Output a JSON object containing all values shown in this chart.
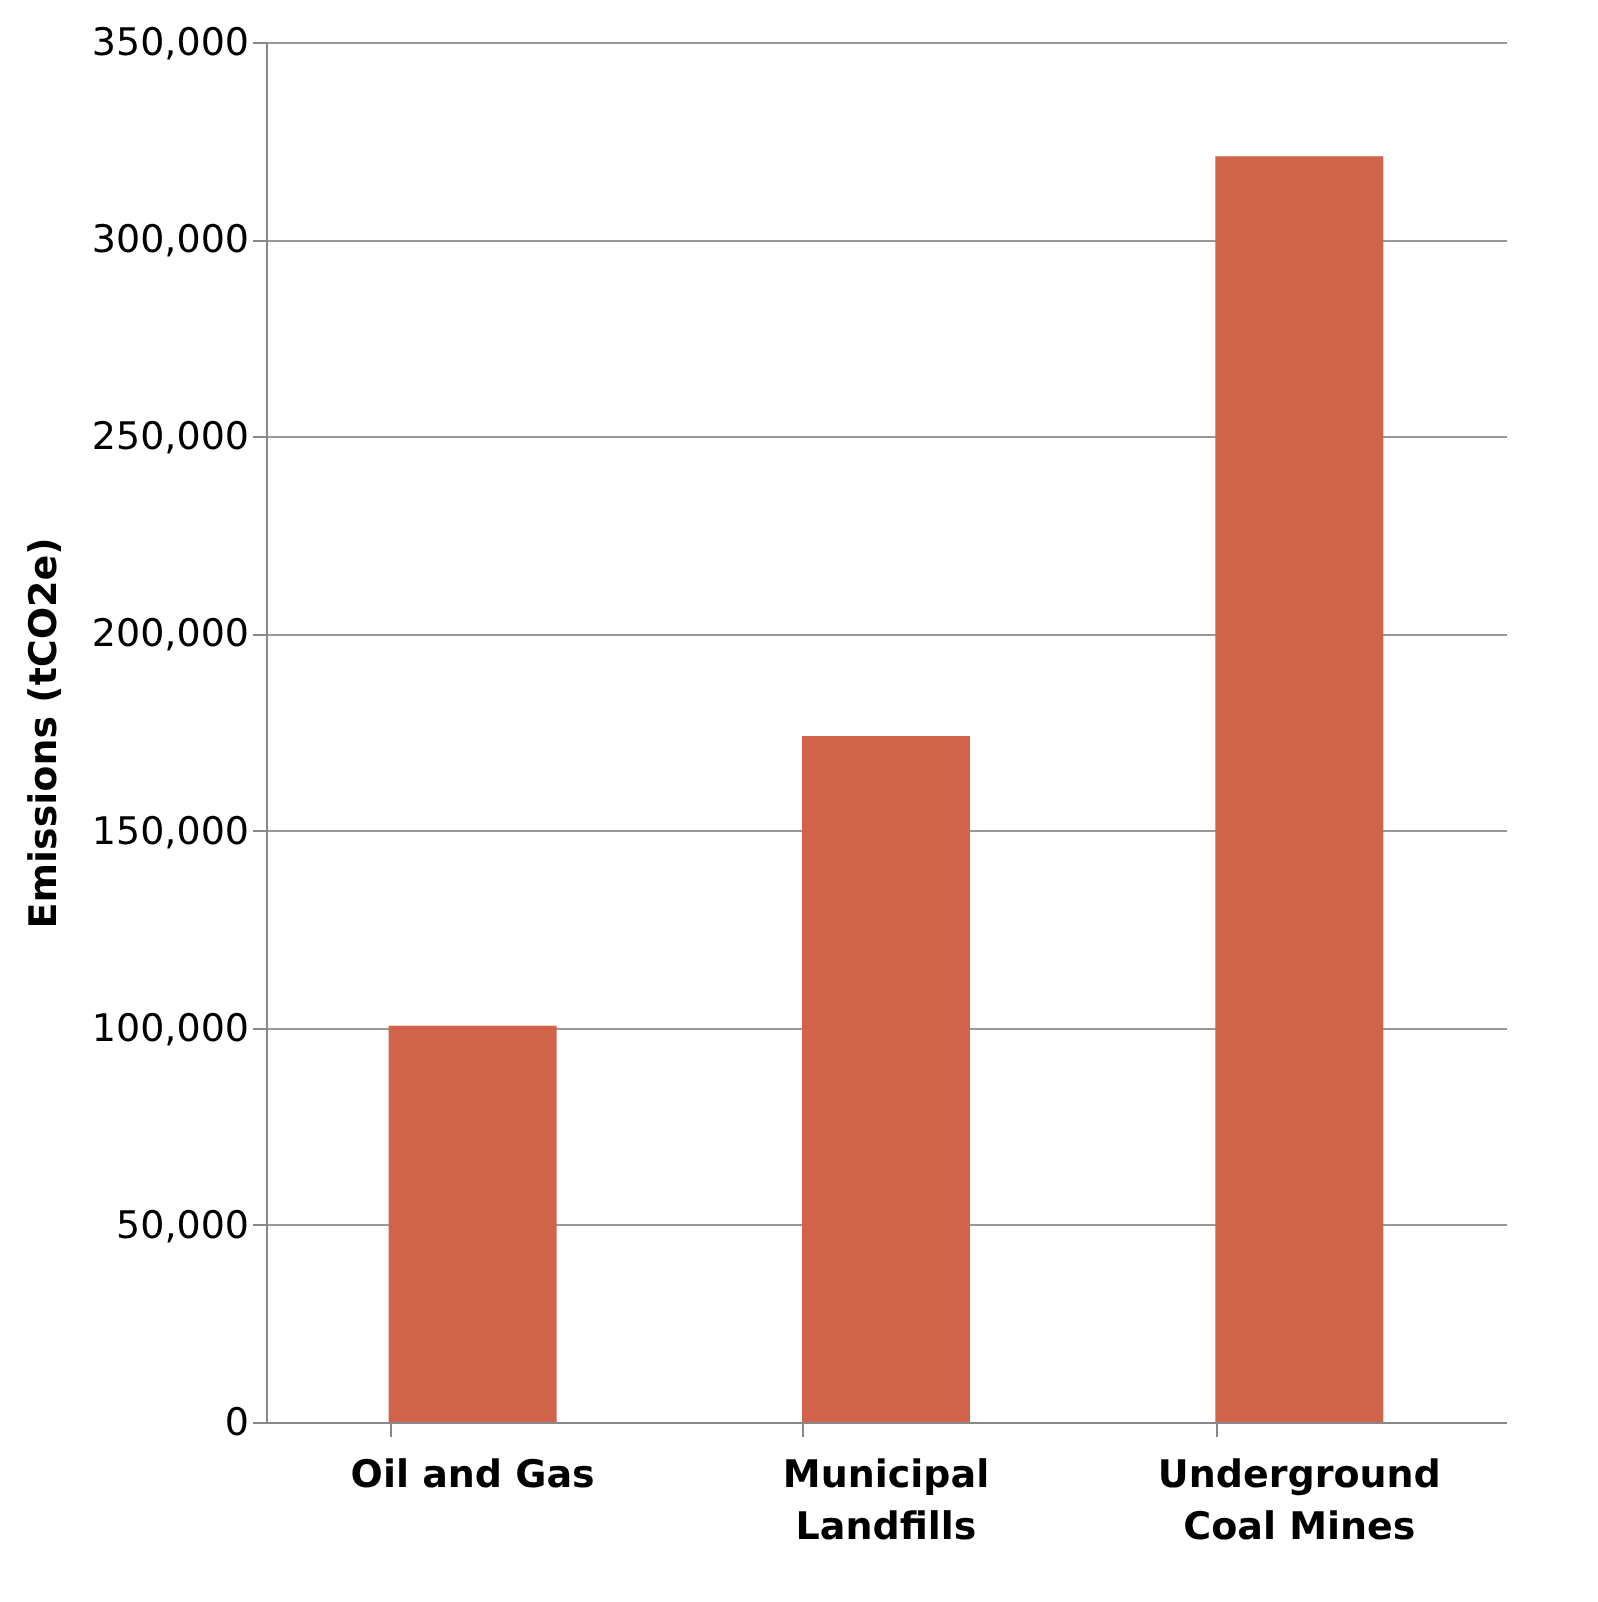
{
  "chart_data": {
    "type": "bar",
    "ylabel": "Emissions (tCO2e)",
    "categories": [
      "Oil and Gas",
      "Municipal Landfills",
      "Underground Coal Mines"
    ],
    "values": [
      100500,
      174000,
      321000
    ],
    "color": "#d0634a",
    "ylim": [
      0,
      350000
    ],
    "yticks": [
      {
        "value": 0,
        "label": "0"
      },
      {
        "value": 50000,
        "label": "50,000"
      },
      {
        "value": 100000,
        "label": "100,000"
      },
      {
        "value": 150000,
        "label": "150,000"
      },
      {
        "value": 200000,
        "label": "200,000"
      },
      {
        "value": 250000,
        "label": "250,000"
      },
      {
        "value": 300000,
        "label": "300,000"
      },
      {
        "value": 350000,
        "label": "350,000"
      }
    ],
    "grid": "y"
  }
}
